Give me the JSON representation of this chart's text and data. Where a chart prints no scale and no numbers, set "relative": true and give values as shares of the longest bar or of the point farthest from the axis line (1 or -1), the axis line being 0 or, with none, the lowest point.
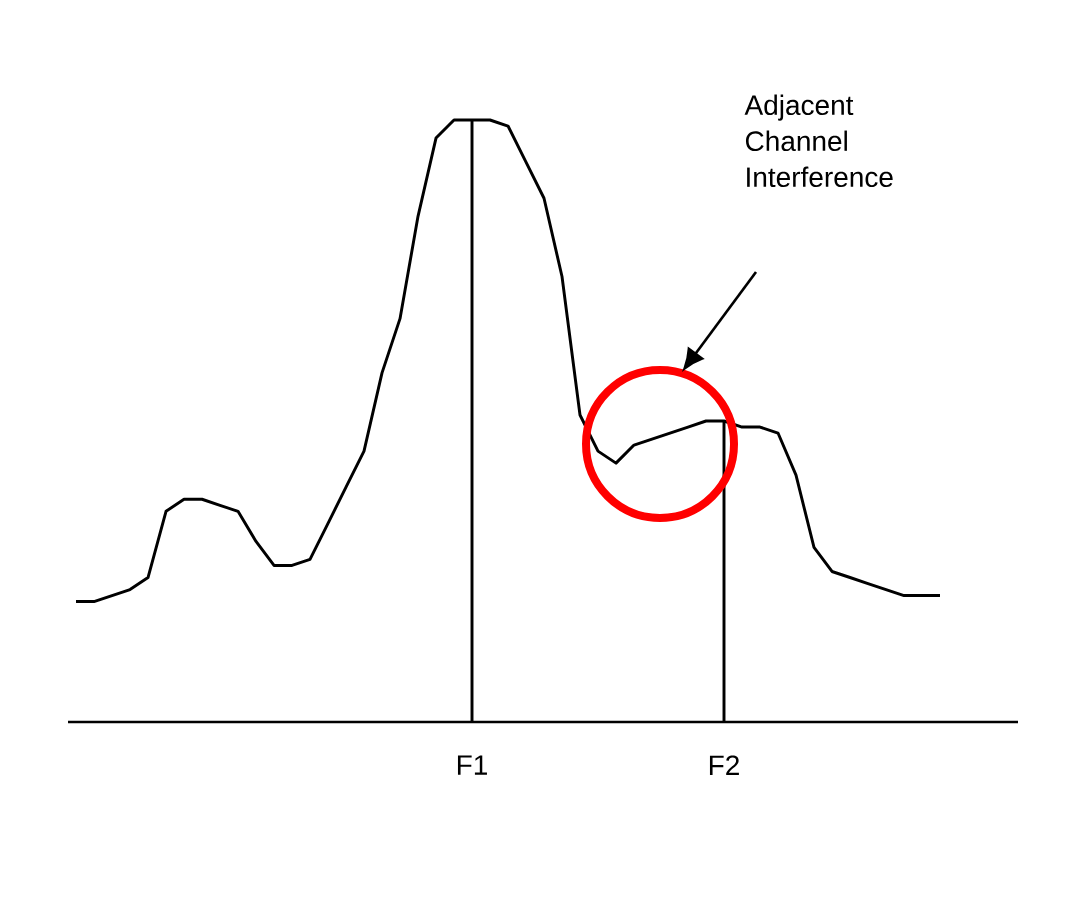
{
  "chart_data": {
    "type": "line",
    "relative": true,
    "categories": [
      null,
      null,
      null,
      null,
      null,
      null,
      null,
      null,
      null,
      null,
      null,
      null,
      null,
      null,
      null,
      null,
      null,
      null,
      null,
      null,
      null,
      null,
      "F1",
      null,
      null,
      null,
      null,
      null,
      null,
      null,
      null,
      null,
      null,
      null,
      null,
      null,
      "F2",
      null,
      null,
      null,
      null,
      null,
      null,
      null,
      null,
      null,
      null,
      null,
      null
    ],
    "series": [
      {
        "color": "#000000",
        "values": [
          0.2,
          0.2,
          0.21,
          0.22,
          0.24,
          0.35,
          0.37,
          0.37,
          0.36,
          0.35,
          0.3,
          0.26,
          0.26,
          0.27,
          0.33,
          0.39,
          0.45,
          0.58,
          0.67,
          0.84,
          0.97,
          1,
          1,
          1,
          0.99,
          0.93,
          0.87,
          0.74,
          0.51,
          0.45,
          0.43,
          0.46,
          0.47,
          0.48,
          0.49,
          0.5,
          0.5,
          0.49,
          0.49,
          0.48,
          0.41,
          0.29,
          0.25,
          0.24,
          0.23,
          0.22,
          0.21,
          0.21,
          0.21
        ]
      },
      {
        "type": "bar",
        "color": "#000000",
        "values": [
          null,
          null,
          null,
          null,
          null,
          null,
          null,
          null,
          null,
          null,
          null,
          null,
          null,
          null,
          null,
          null,
          null,
          null,
          null,
          null,
          null,
          null,
          1,
          null,
          null,
          null,
          null,
          null,
          null,
          null,
          null,
          null,
          null,
          null,
          null,
          null,
          0.5,
          null,
          null,
          null,
          null,
          null,
          null,
          null,
          null,
          null,
          null,
          null,
          null
        ]
      }
    ],
    "annotations": [
      "Adjacent Channel Interference"
    ]
  }
}
